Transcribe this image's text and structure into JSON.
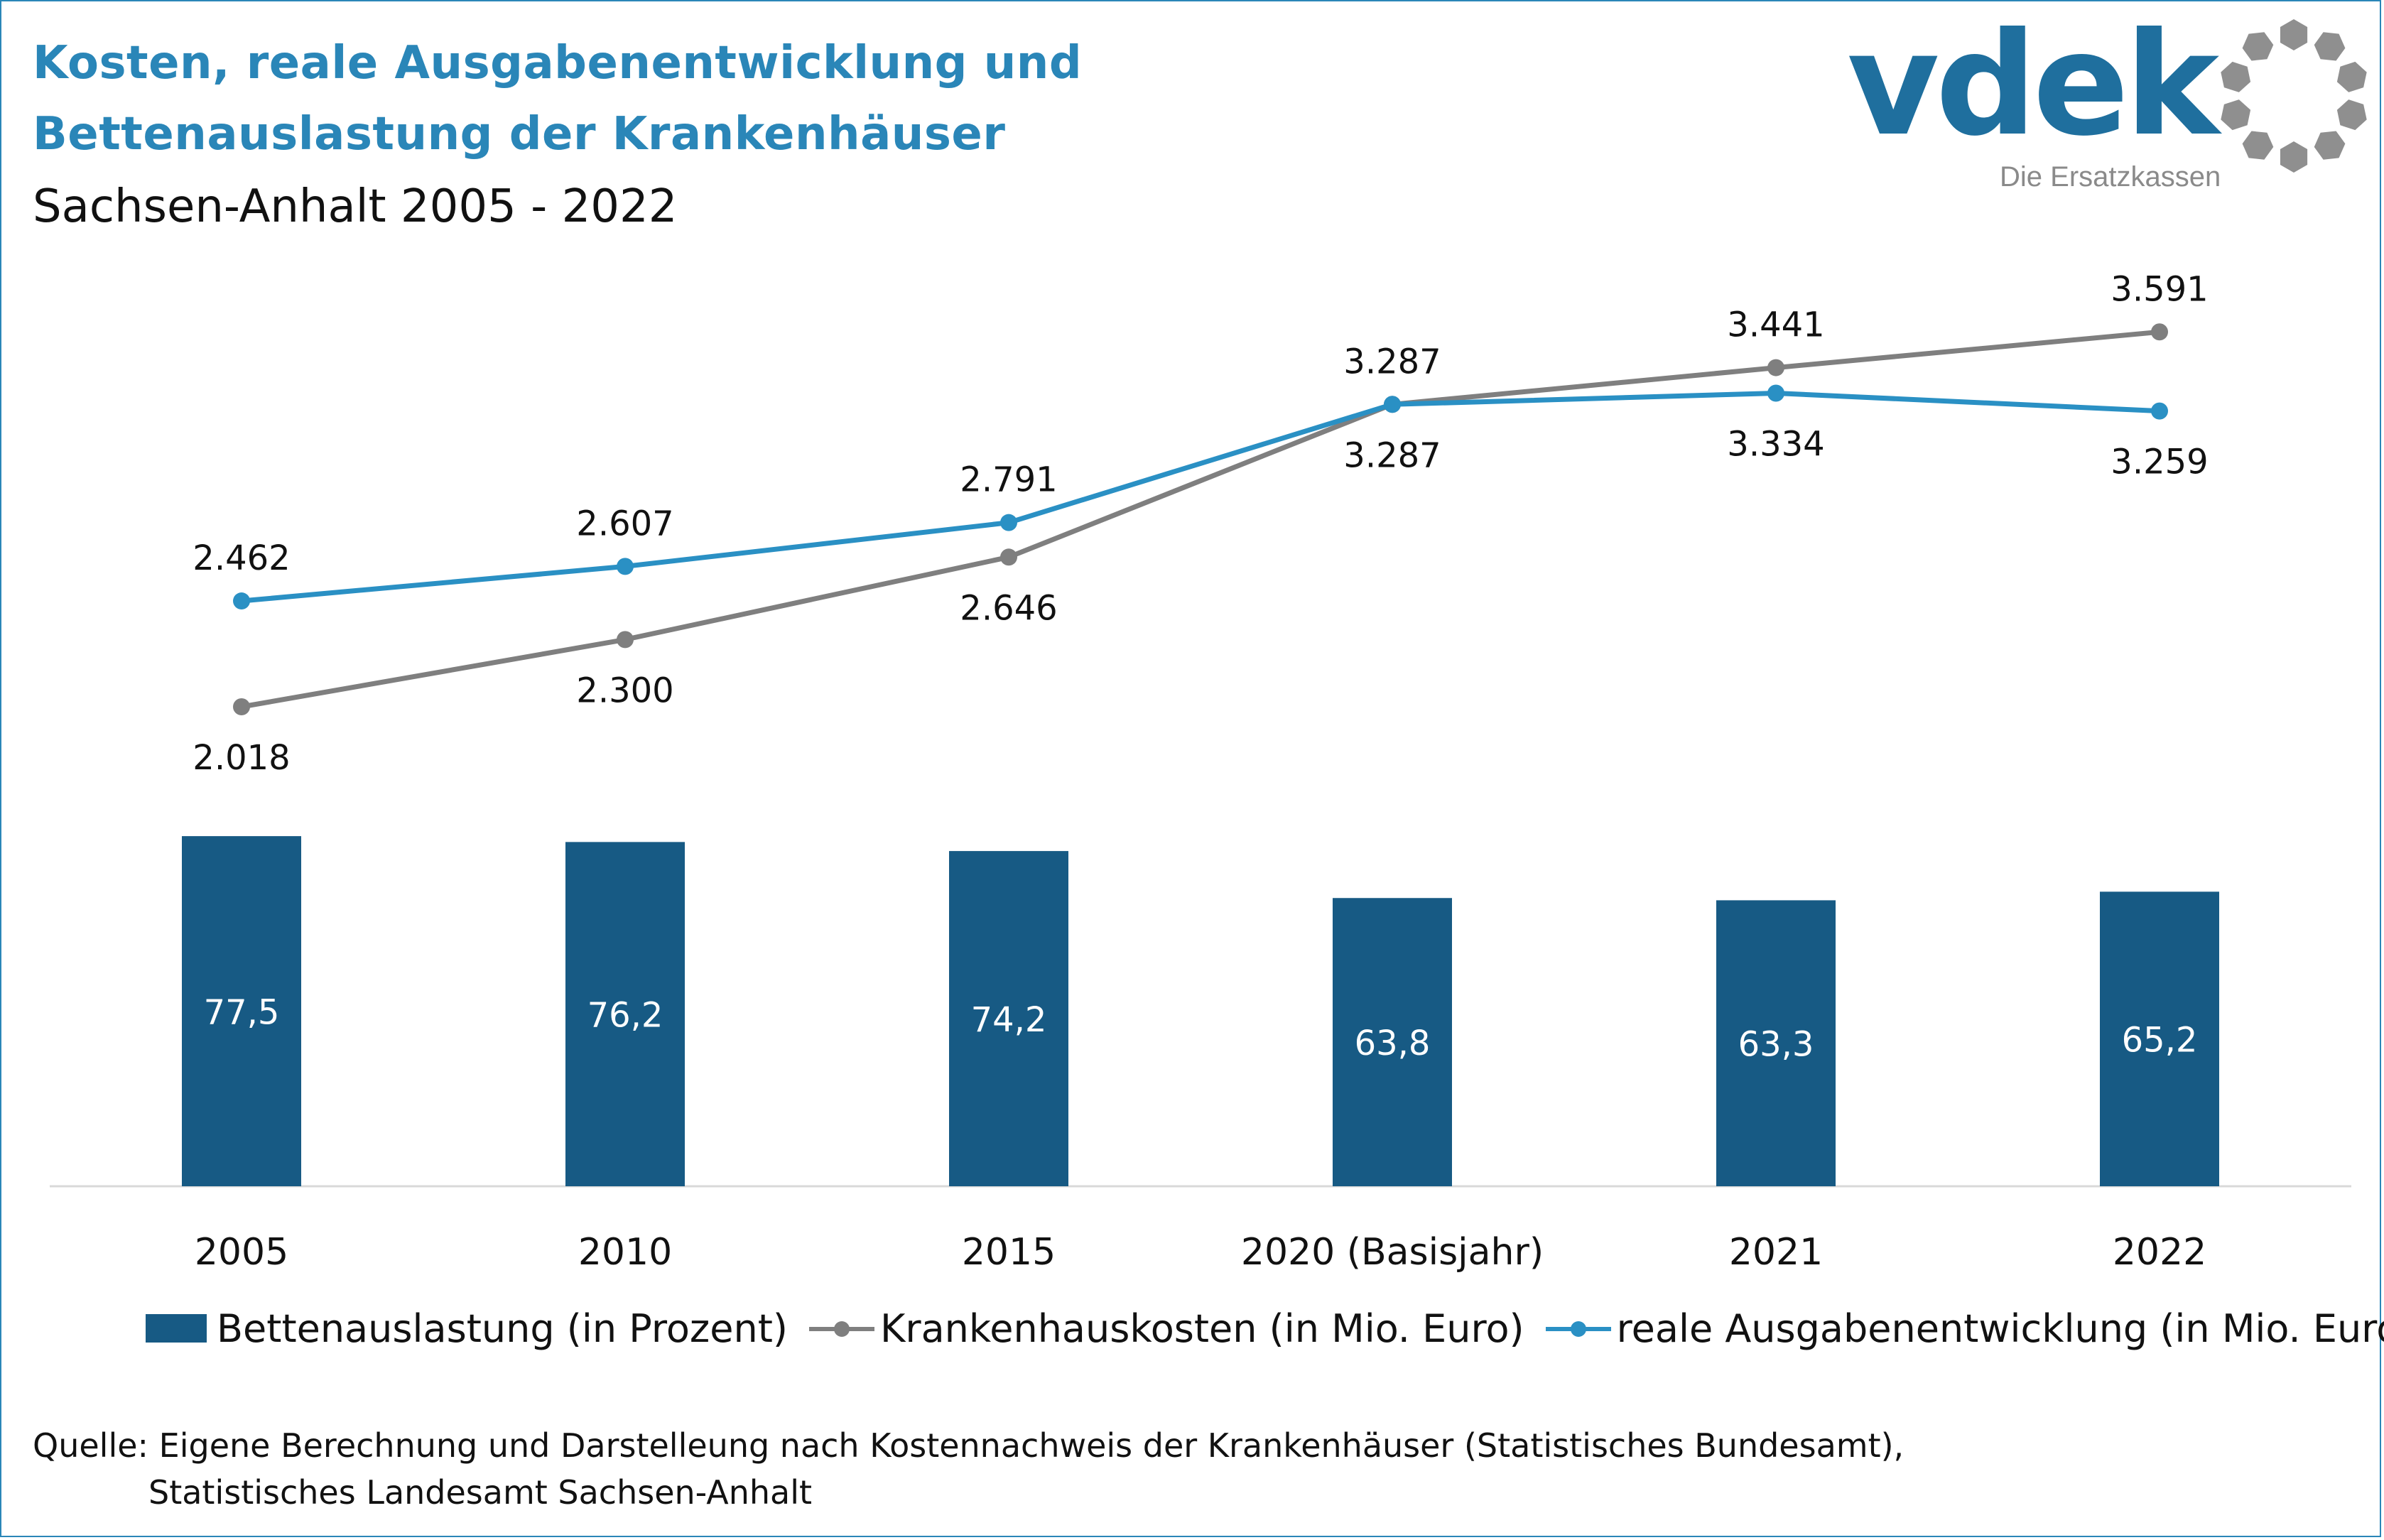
{
  "header": {
    "title_line1": "Kosten, reale Ausgabenentwicklung und",
    "title_line2": "Bettenauslastung der Krankenhäuser",
    "subtitle": "Sachsen-Anhalt 2005 - 2022"
  },
  "logo": {
    "wordmark": "vdek",
    "tagline": "Die Ersatzkassen"
  },
  "colors": {
    "title": "#2a86b8",
    "bars": "#175a84",
    "cost_line": "#7f7f7f",
    "real_line": "#2a90c4",
    "frame": "#2a86b8"
  },
  "chart_data": {
    "type": "bar+line",
    "categories": [
      "2005",
      "2010",
      "2015",
      "2020 (Basisjahr)",
      "2021",
      "2022"
    ],
    "series": [
      {
        "name": "Bettenauslastung (in Prozent)",
        "kind": "bar",
        "values": [
          77.5,
          76.2,
          74.2,
          63.8,
          63.3,
          65.2
        ],
        "labels": [
          "77,5",
          "76,2",
          "74,2",
          "63,8",
          "63,3",
          "65,2"
        ]
      },
      {
        "name": "Krankenhauskosten (in Mio. Euro)",
        "kind": "line",
        "values": [
          2018,
          2300,
          2646,
          3287,
          3441,
          3591
        ],
        "labels": [
          "2.018",
          "2.300",
          "2.646",
          "3.287",
          "3.441",
          "3.591"
        ]
      },
      {
        "name": "reale Ausgabenentwicklung (in Mio. Euro)",
        "kind": "line",
        "values": [
          2462,
          2607,
          2791,
          3287,
          3334,
          3259
        ],
        "labels": [
          "2.462",
          "2.607",
          "2.791",
          "3.287",
          "3.334",
          "3.259"
        ]
      }
    ],
    "label_position": {
      "cost": [
        "below",
        "below",
        "below",
        "above",
        "above",
        "above"
      ],
      "real": [
        "above",
        "above",
        "above",
        "below",
        "below",
        "below"
      ]
    },
    "legend": "bottom",
    "grid": false
  },
  "source": {
    "line1": "Quelle: Eigene Berechnung und Darstelleung nach Kostennachweis der Krankenhäuser (Statistisches Bundesamt),",
    "line2": "Statistisches Landesamt Sachsen-Anhalt"
  }
}
